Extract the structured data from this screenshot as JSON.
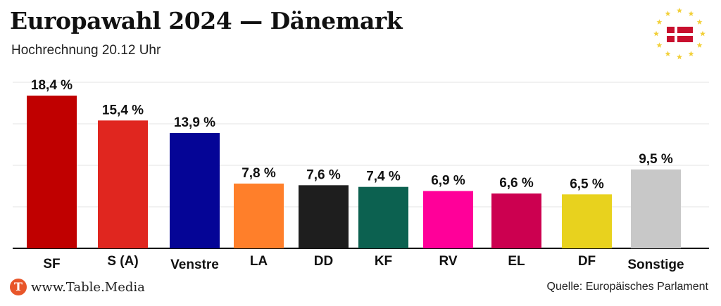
{
  "header": {
    "title": "Europawahl 2024 — Dänemark",
    "subtitle": "Hochrechnung 20.12 Uhr"
  },
  "footer": {
    "logo_letter": "T",
    "site": "www.Table.Media",
    "source": "Quelle: Europäisches Parlament"
  },
  "flag": {
    "stars": 12,
    "star_color": "#f2d03a",
    "flag_red": "#c8102e"
  },
  "chart_data": {
    "type": "bar",
    "categories": [
      "SF",
      "S (A)",
      "Venstre",
      "LA",
      "DD",
      "KF",
      "RV",
      "EL",
      "DF",
      "Sonstige"
    ],
    "values": [
      18.4,
      15.4,
      13.9,
      7.8,
      7.6,
      7.4,
      6.9,
      6.6,
      6.5,
      9.5
    ],
    "value_labels": [
      "18,4 %",
      "15,4 %",
      "13,9 %",
      "7,8 %",
      "7,6 %",
      "7,4 %",
      "6,9 %",
      "6,6 %",
      "6,5 %",
      "9,5 %"
    ],
    "colors": [
      "#c00000",
      "#e0261f",
      "#050596",
      "#ff7f2a",
      "#1e1e1e",
      "#0c6150",
      "#ff0099",
      "#cc0050",
      "#e8d21e",
      "#c8c8c8"
    ],
    "ylim": [
      0,
      20
    ],
    "grid": true,
    "legend": "none"
  }
}
